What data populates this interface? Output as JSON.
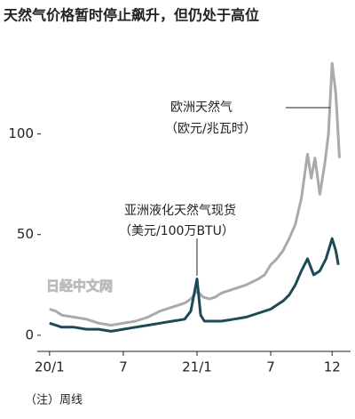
{
  "chart_data": {
    "type": "line",
    "title": "天然气价格暂时停止飙升，但仍处于高位",
    "note": "（注）周线",
    "watermark": "日经中文网",
    "xlim": [
      -1,
      24.5
    ],
    "xticks": [
      {
        "value": 0,
        "label": "20/1"
      },
      {
        "value": 6,
        "label": "7"
      },
      {
        "value": 12,
        "label": "21/1"
      },
      {
        "value": 18,
        "label": "7"
      },
      {
        "value": 23,
        "label": "12"
      }
    ],
    "ylim": [
      -8,
      140
    ],
    "yticks": [
      0,
      50,
      100
    ],
    "series": [
      {
        "name": "欧洲天然气",
        "unit": "（欧元/兆瓦时）",
        "color": "#aaaaaa",
        "x": [
          0,
          0.5,
          1,
          2,
          3,
          4,
          5,
          6,
          7,
          8,
          9,
          10,
          11,
          11.5,
          12,
          12.5,
          13,
          13.5,
          14,
          15,
          16,
          17,
          17.5,
          18,
          18.5,
          19,
          19.5,
          20,
          20.5,
          21,
          21.3,
          21.6,
          22,
          22.4,
          22.7,
          23,
          23.3,
          23.6
        ],
        "values": [
          13,
          12,
          10,
          9,
          8,
          6,
          5,
          6,
          7,
          9,
          12,
          14,
          16,
          18,
          22,
          19,
          18,
          19,
          21,
          23,
          25,
          28,
          30,
          35,
          38,
          42,
          48,
          55,
          68,
          90,
          78,
          88,
          70,
          85,
          100,
          135,
          120,
          88
        ]
      },
      {
        "name": "亚洲液化天然气现货",
        "unit": "（美元/100万BTU）",
        "color": "#1e4a56",
        "x": [
          0,
          0.5,
          1,
          2,
          3,
          4,
          5,
          6,
          7,
          8,
          9,
          10,
          11,
          11.5,
          12,
          12.3,
          12.6,
          13,
          14,
          15,
          16,
          17,
          18,
          18.5,
          19,
          19.5,
          20,
          20.5,
          21,
          21.5,
          22,
          22.5,
          23,
          23.3,
          23.5
        ],
        "values": [
          6,
          5,
          4,
          4,
          3,
          3,
          2,
          3,
          4,
          5,
          6,
          7,
          8,
          12,
          28,
          10,
          7,
          7,
          7,
          8,
          9,
          11,
          13,
          15,
          17,
          20,
          25,
          32,
          38,
          30,
          32,
          38,
          48,
          42,
          35
        ]
      }
    ]
  }
}
